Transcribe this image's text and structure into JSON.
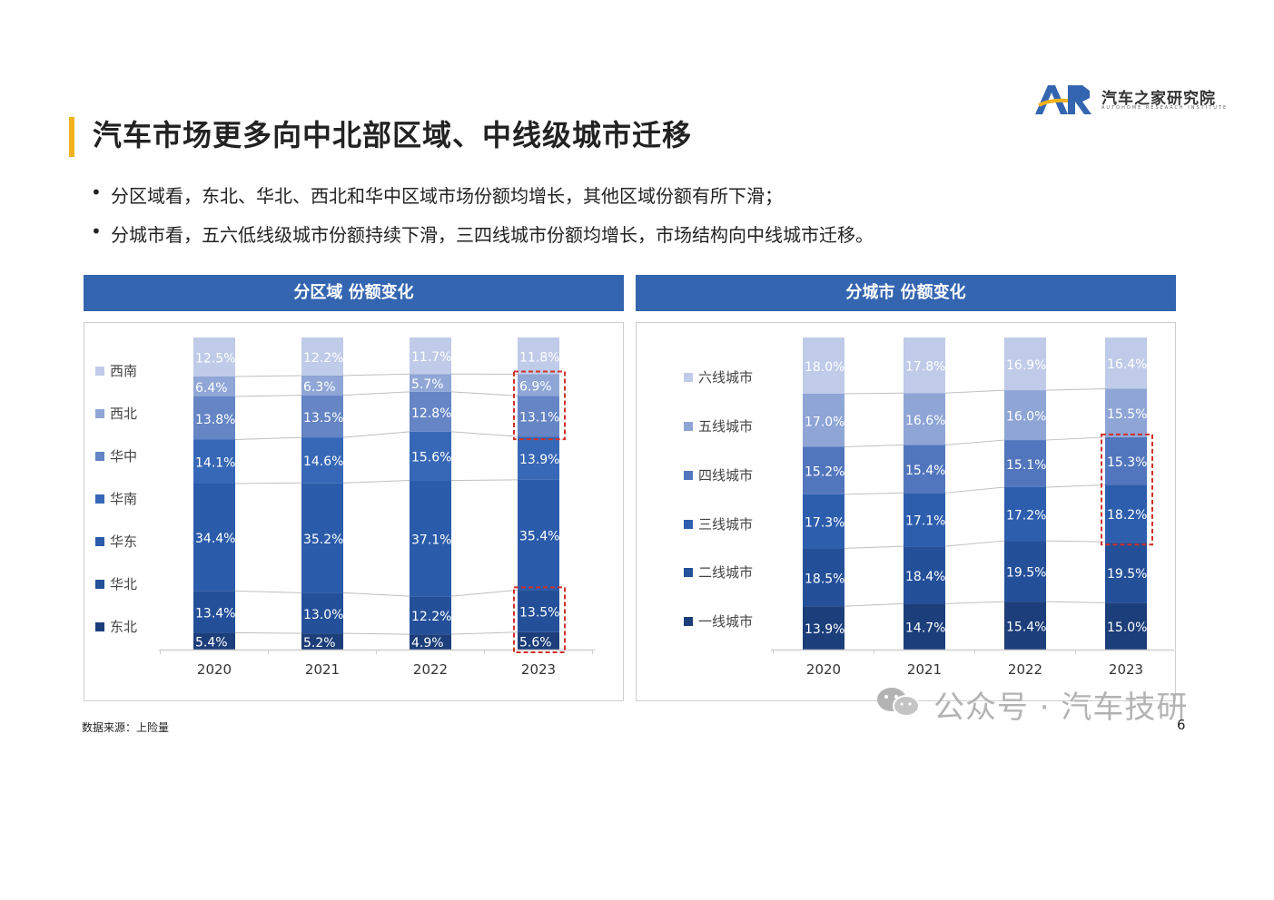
{
  "logo": {
    "text": "汽车之家研究院",
    "sub": "AUTOHOME RESEARCH INSTITUTE"
  },
  "title": "汽车市场更多向中北部区域、中线级城市迁移",
  "bullets": [
    "分区域看，东北、华北、西北和华中区域市场份额均增长，其他区域份额有所下滑；",
    "分城市看，五六低线级城市份额持续下滑，三四线城市份额均增长，市场结构向中线城市迁移。"
  ],
  "bullet_symbol": "•",
  "source": "数据来源：上险量",
  "watermark": "公众号 · 汽车技研",
  "page_number": "6",
  "colors": {
    "header": "#3465b1",
    "accent": "#f2b21c",
    "highlight": "#d0302a"
  },
  "chart_data": [
    {
      "type": "bar",
      "stacked": true,
      "panel_title": "分区域 份额变化",
      "categories": [
        "2020",
        "2021",
        "2022",
        "2023"
      ],
      "legend_position": "left",
      "series": [
        {
          "name": "东北",
          "values": [
            5.4,
            5.2,
            4.9,
            5.6
          ],
          "labels": [
            "5.4%",
            "5.2%",
            "4.9%",
            "5.6%"
          ],
          "color": "#1c3e7a"
        },
        {
          "name": "华北",
          "values": [
            13.4,
            13.0,
            12.2,
            13.5
          ],
          "labels": [
            "13.4%",
            "13.0%",
            "12.2%",
            "13.5%"
          ],
          "color": "#24509a"
        },
        {
          "name": "华东",
          "values": [
            34.4,
            35.2,
            37.1,
            35.4
          ],
          "labels": [
            "34.4%",
            "35.2%",
            "37.1%",
            "35.4%"
          ],
          "color": "#2b5cab"
        },
        {
          "name": "华南",
          "values": [
            14.1,
            14.6,
            15.6,
            13.9
          ],
          "labels": [
            "14.1%",
            "14.6%",
            "15.6%",
            "13.9%"
          ],
          "color": "#3768b7"
        },
        {
          "name": "华中",
          "values": [
            13.8,
            13.5,
            12.8,
            13.1
          ],
          "labels": [
            "13.8%",
            "13.5%",
            "12.8%",
            "13.1%"
          ],
          "color": "#6585c5"
        },
        {
          "name": "西北",
          "values": [
            6.4,
            6.3,
            5.7,
            6.9
          ],
          "labels": [
            "6.4%",
            "6.3%",
            "5.7%",
            "6.9%"
          ],
          "color": "#8fa6d6"
        },
        {
          "name": "西南",
          "values": [
            12.5,
            12.2,
            11.7,
            11.8
          ],
          "labels": [
            "12.5%",
            "12.2%",
            "11.7%",
            "11.8%"
          ],
          "color": "#bfcbe8"
        }
      ],
      "highlights": [
        {
          "category": "2023",
          "series": [
            "西北",
            "华中"
          ]
        },
        {
          "category": "2023",
          "series": [
            "东北",
            "华北"
          ]
        }
      ]
    },
    {
      "type": "bar",
      "stacked": true,
      "panel_title": "分城市 份额变化",
      "categories": [
        "2020",
        "2021",
        "2022",
        "2023"
      ],
      "legend_position": "left",
      "series": [
        {
          "name": "一线城市",
          "values": [
            13.9,
            14.7,
            15.4,
            15.0
          ],
          "labels": [
            "13.9%",
            "14.7%",
            "15.4%",
            "15.0%"
          ],
          "color": "#1c3e7a"
        },
        {
          "name": "二线城市",
          "values": [
            18.5,
            18.4,
            19.5,
            19.5
          ],
          "labels": [
            "18.5%",
            "18.4%",
            "19.5%",
            "19.5%"
          ],
          "color": "#24509a"
        },
        {
          "name": "三线城市",
          "values": [
            17.3,
            17.1,
            17.2,
            18.2
          ],
          "labels": [
            "17.3%",
            "17.1%",
            "17.2%",
            "18.2%"
          ],
          "color": "#2d5eae"
        },
        {
          "name": "四线城市",
          "values": [
            15.2,
            15.4,
            15.1,
            15.3
          ],
          "labels": [
            "15.2%",
            "15.4%",
            "15.1%",
            "15.3%"
          ],
          "color": "#5276bd"
        },
        {
          "name": "五线城市",
          "values": [
            17.0,
            16.6,
            16.0,
            15.5
          ],
          "labels": [
            "17.0%",
            "16.6%",
            "16.0%",
            "15.5%"
          ],
          "color": "#8ea5d6"
        },
        {
          "name": "六线城市",
          "values": [
            18.0,
            17.8,
            16.9,
            16.4
          ],
          "labels": [
            "18.0%",
            "17.8%",
            "16.9%",
            "16.4%"
          ],
          "color": "#bfcbe8"
        }
      ],
      "highlights": [
        {
          "category": "2023",
          "series": [
            "三线城市",
            "四线城市"
          ]
        }
      ]
    }
  ]
}
